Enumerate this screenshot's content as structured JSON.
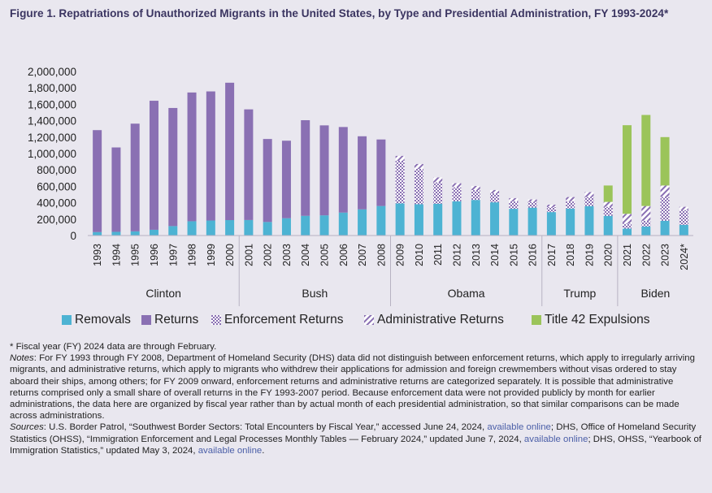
{
  "figure": {
    "title": "Figure 1. Repatriations of Unauthorized Migrants in the United States, by Type and Presidential Administration, FY 1993-2024*"
  },
  "colors": {
    "removals": "#4db3d3",
    "returns": "#8a70b3",
    "enforcement_returns": "#8a70b3",
    "administrative_returns": "#8a70b3",
    "title42": "#9bc45a",
    "background": "#e9e7ef",
    "grid": "#d2ced9"
  },
  "chart_data": {
    "type": "bar",
    "stacked": true,
    "title": "Repatriations of Unauthorized Migrants in the United States, by Type and Presidential Administration, FY 1993-2024*",
    "xlabel": "",
    "ylabel": "",
    "ylim": [
      0,
      2000000
    ],
    "yticks": [
      0,
      200000,
      400000,
      600000,
      800000,
      1000000,
      1200000,
      1400000,
      1600000,
      1800000,
      2000000
    ],
    "ytick_labels": [
      "0",
      "200,000",
      "400,000",
      "600,000",
      "800,000",
      "1,000,000",
      "1,200,000",
      "1,400,000",
      "1,600,000",
      "1,800,000",
      "2,000,000"
    ],
    "categories": [
      "1993",
      "1994",
      "1995",
      "1996",
      "1997",
      "1998",
      "1999",
      "2000",
      "2001",
      "2002",
      "2003",
      "2004",
      "2005",
      "2006",
      "2007",
      "2008",
      "2009",
      "2010",
      "2011",
      "2012",
      "2013",
      "2014",
      "2015",
      "2016",
      "2017",
      "2018",
      "2019",
      "2020",
      "2021",
      "2022",
      "2023",
      "2024*"
    ],
    "series": [
      {
        "name": "Removals",
        "key": "removals",
        "values": [
          42000,
          45000,
          51000,
          70000,
          115000,
          174000,
          183000,
          188000,
          189000,
          165000,
          211000,
          240000,
          246000,
          280000,
          319000,
          360000,
          391000,
          382000,
          388000,
          418000,
          434000,
          405000,
          326000,
          340000,
          286000,
          329000,
          359000,
          240000,
          85000,
          110000,
          180000,
          130000
        ]
      },
      {
        "name": "Returns",
        "key": "returns",
        "values": [
          1243000,
          1029000,
          1313000,
          1573000,
          1440000,
          1570000,
          1574000,
          1675000,
          1349000,
          1012000,
          945000,
          1166000,
          1097000,
          1043000,
          891000,
          811000,
          0,
          0,
          0,
          0,
          0,
          0,
          0,
          0,
          0,
          0,
          0,
          0,
          0,
          0,
          0,
          0
        ]
      },
      {
        "name": "Enforcement Returns",
        "key": "enforcement_returns",
        "values": [
          0,
          0,
          0,
          0,
          0,
          0,
          0,
          0,
          0,
          0,
          0,
          0,
          0,
          0,
          0,
          0,
          520000,
          430000,
          260000,
          170000,
          120000,
          110000,
          90000,
          70000,
          60000,
          90000,
          110000,
          110000,
          60000,
          70000,
          290000,
          180000
        ]
      },
      {
        "name": "Administrative Returns",
        "key": "administrative_returns",
        "values": [
          0,
          0,
          0,
          0,
          0,
          0,
          0,
          0,
          0,
          0,
          0,
          0,
          0,
          0,
          0,
          0,
          60000,
          60000,
          60000,
          50000,
          50000,
          40000,
          40000,
          30000,
          30000,
          50000,
          60000,
          60000,
          120000,
          180000,
          140000,
          40000
        ]
      },
      {
        "name": "Title 42 Expulsions",
        "key": "title42",
        "values": [
          0,
          0,
          0,
          0,
          0,
          0,
          0,
          0,
          0,
          0,
          0,
          0,
          0,
          0,
          0,
          0,
          0,
          0,
          0,
          0,
          0,
          0,
          0,
          0,
          0,
          0,
          0,
          200000,
          1080000,
          1110000,
          590000,
          0
        ]
      }
    ],
    "administrations": [
      {
        "name": "Clinton",
        "start": 0,
        "end": 7
      },
      {
        "name": "Bush",
        "start": 8,
        "end": 15
      },
      {
        "name": "Obama",
        "start": 16,
        "end": 23
      },
      {
        "name": "Trump",
        "start": 24,
        "end": 27
      },
      {
        "name": "Biden",
        "start": 28,
        "end": 31
      }
    ],
    "legend": [
      "Removals",
      "Returns",
      "Enforcement Returns",
      "Administrative Returns",
      "Title 42 Expulsions"
    ],
    "legend_position": "bottom",
    "grid": false
  },
  "notes": {
    "fiscal_note": "* Fiscal year (FY) 2024 data are through February.",
    "notes_label": "Notes",
    "notes_text": ": For FY 1993 through FY 2008, Department of Homeland Security (DHS) data did not distinguish between enforcement returns, which apply to irregularly arriving migrants, and administrative returns, which apply to migrants who withdrew their applications for admission and foreign crewmembers without visas ordered to stay aboard their ships, among others; for FY 2009 onward, enforcement returns and administrative returns are categorized separately. It is possible that administrative returns comprised only a small share of overall returns in the FY 1993-2007 period. Because enforcement data were not provided publicly by month for earlier administrations, the data here are organized by fiscal year rather than by actual month of each presidential administration, so that similar comparisons can be made across administrations.",
    "sources_label": "Sources",
    "sources_part1": ": U.S. Border Patrol, “Southwest Border Sectors: Total Encounters by Fiscal Year,” accessed June 24, 2024, ",
    "link1": "available online",
    "sources_part2": "; DHS, Office of Homeland Security Statistics (OHSS), “Immigration Enforcement and Legal Processes Monthly Tables — February 2024,” updated June 7, 2024, ",
    "link2": "available online",
    "sources_part3": "; DHS, OHSS, “Yearbook of Immigration Statistics,” updated May 3, 2024, ",
    "link3": "available online",
    "sources_end": "."
  }
}
